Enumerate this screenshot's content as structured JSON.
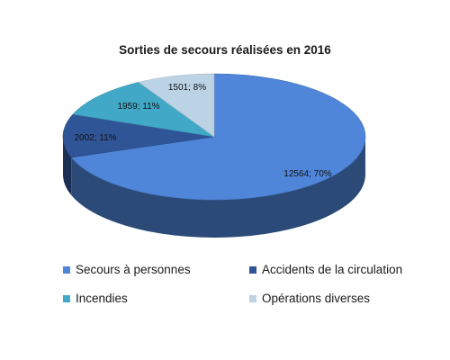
{
  "chart_data": {
    "type": "pie",
    "title": "Sorties de secours réalisées en 2016",
    "is_3d": true,
    "legend_position": "bottom",
    "slices": [
      {
        "name": "Secours à personnes",
        "value": 12564,
        "percent": 70,
        "label": "12564; 70%",
        "color": "#4f86d9"
      },
      {
        "name": "Accidents de la circulation",
        "value": 2002,
        "percent": 11,
        "label": "2002; 11%",
        "color": "#2f5597"
      },
      {
        "name": "Incendies",
        "value": 1959,
        "percent": 11,
        "label": "1959; 11%",
        "color": "#42a8c8"
      },
      {
        "name": "Opérations diverses",
        "value": 1501,
        "percent": 8,
        "label": "1501; 8%",
        "color": "#bcd3e6"
      }
    ]
  }
}
